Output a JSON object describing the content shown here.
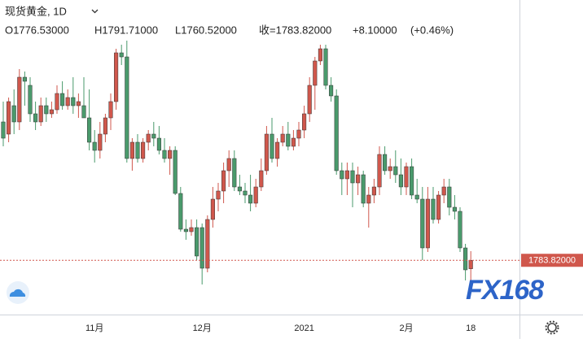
{
  "chart_data": {
    "type": "candlestick",
    "title": "现货黄金, 1D",
    "header": {
      "open": "O1776.53000",
      "high": "H1791.71000",
      "low": "L1760.52000",
      "close": "收=1783.82000",
      "change": "+8.10000",
      "change_pct": "(+0.46%)"
    },
    "watermark": "FX168",
    "up_color": "#d0574c",
    "down_color": "#4a9a6c",
    "ylim": [
      1738.5,
      2008
    ],
    "price_label": {
      "value": 1783.82,
      "label": "1783.82000"
    },
    "categories": [
      null,
      null,
      null,
      null,
      null,
      null,
      null,
      null,
      null,
      null,
      null,
      null,
      null,
      null,
      null,
      null,
      null,
      "11月",
      null,
      null,
      null,
      null,
      null,
      null,
      null,
      null,
      null,
      null,
      null,
      null,
      null,
      null,
      null,
      null,
      null,
      null,
      null,
      "12月",
      null,
      null,
      null,
      null,
      null,
      null,
      null,
      null,
      null,
      null,
      null,
      null,
      null,
      null,
      null,
      null,
      null,
      null,
      "2021",
      null,
      null,
      null,
      null,
      null,
      null,
      null,
      null,
      null,
      null,
      null,
      null,
      null,
      null,
      null,
      null,
      null,
      null,
      "2月",
      null,
      null,
      null,
      null,
      null,
      null,
      null,
      null,
      null,
      null,
      null,
      "18"
    ],
    "open": [
      1903,
      1892.5,
      1917,
      1903,
      1941.5,
      1934.5,
      1910,
      1903,
      1917,
      1910,
      1913.5,
      1927.5,
      1917,
      1924,
      1917,
      1917,
      1906.5,
      1885.5,
      1878.5,
      1892.5,
      1906.5,
      1920.5,
      1962.5,
      1959,
      1871.5,
      1885.5,
      1871.5,
      1885.5,
      1892.5,
      1889,
      1878.5,
      1871.5,
      1878.5,
      1841.4,
      1810.6,
      1808.5,
      1812,
      1812,
      1777,
      1819,
      1836.5,
      1843.5,
      1861,
      1871.5,
      1847,
      1843.5,
      1840,
      1833,
      1847,
      1861,
      1892.5,
      1871.5,
      1885.5,
      1892.5,
      1882,
      1889,
      1896,
      1910,
      1934.5,
      1955.5,
      1966,
      1934.5,
      1925.4,
      1861,
      1854,
      1861,
      1850.5,
      1857.5,
      1833,
      1840,
      1847,
      1875,
      1861,
      1864.5,
      1857.5,
      1847,
      1864.5,
      1840,
      1836.5,
      1794.5,
      1836.5,
      1819,
      1840,
      1847,
      1829.5,
      1826,
      1794.5,
      1776.53
    ],
    "high": [
      1920.5,
      1924,
      1931,
      1948.5,
      1946.4,
      1941.5,
      1920.5,
      1924,
      1924,
      1920.5,
      1934.5,
      1938,
      1931,
      1941.5,
      1927.5,
      1941.5,
      1931,
      1896,
      1903,
      1910,
      1927.5,
      1966,
      1969.5,
      1973,
      1889,
      1892.5,
      1889,
      1896,
      1903,
      1899.5,
      1889,
      1882,
      1882,
      1847,
      1819,
      1819,
      1819,
      1815.5,
      1822.5,
      1847,
      1850.5,
      1868,
      1878.5,
      1878.5,
      1857.5,
      1850.5,
      1857.5,
      1854,
      1871.5,
      1899.5,
      1906.5,
      1889,
      1899.5,
      1903,
      1896,
      1903,
      1917,
      1941.5,
      1959,
      1969.5,
      1969.5,
      1941.5,
      1931,
      1868,
      1868,
      1868,
      1864.5,
      1861,
      1847,
      1854,
      1882,
      1882,
      1871.5,
      1878.5,
      1871.5,
      1868,
      1871.5,
      1854,
      1847,
      1847,
      1847,
      1843.5,
      1854,
      1854,
      1840,
      1829.5,
      1798,
      1791.71
    ],
    "low": [
      1882,
      1885.5,
      1892.5,
      1896,
      1917,
      1903,
      1896,
      1899.5,
      1903,
      1906.5,
      1910,
      1913.5,
      1913.5,
      1910,
      1906.5,
      1906.5,
      1878.5,
      1868,
      1871.5,
      1885.5,
      1896,
      1913.5,
      1952,
      1868,
      1861,
      1868,
      1868,
      1878.5,
      1882,
      1875,
      1868,
      1857.5,
      1840,
      1808.5,
      1801.5,
      1805,
      1784,
      1763,
      1773.5,
      1812,
      1826,
      1833,
      1847,
      1843.5,
      1840,
      1833,
      1826,
      1829.5,
      1843.5,
      1857.5,
      1868,
      1864.5,
      1882,
      1878.5,
      1878.5,
      1882,
      1889,
      1903,
      1913.5,
      1952,
      1931,
      1920.5,
      1857.5,
      1840,
      1840,
      1829.5,
      1840,
      1829.5,
      1812,
      1833,
      1840,
      1857.5,
      1854,
      1850.5,
      1840,
      1840,
      1836.5,
      1833,
      1784,
      1791,
      1815.5,
      1815.5,
      1833,
      1822.5,
      1819,
      1791,
      1766.5,
      1760.52
    ],
    "close": [
      1889,
      1920.5,
      1903,
      1941.5,
      1938,
      1910,
      1903,
      1917,
      1910,
      1913.5,
      1927.5,
      1917,
      1924,
      1917,
      1920.5,
      1906.5,
      1885.5,
      1878.5,
      1892.5,
      1906.5,
      1920.5,
      1962.5,
      1959,
      1871.5,
      1885.5,
      1871.5,
      1885.5,
      1892.5,
      1889,
      1878.5,
      1871.5,
      1878.5,
      1841.4,
      1810.6,
      1808.5,
      1812,
      1787.5,
      1777,
      1819,
      1836.5,
      1843.5,
      1861,
      1871.5,
      1847,
      1843.5,
      1840,
      1833,
      1847,
      1861,
      1892.5,
      1871.5,
      1885.5,
      1892.5,
      1882,
      1889,
      1896,
      1910,
      1934.5,
      1955.5,
      1966,
      1934.5,
      1925.4,
      1861,
      1854,
      1861,
      1850.5,
      1857.5,
      1833,
      1840,
      1847,
      1875,
      1861,
      1864.5,
      1857.5,
      1847,
      1864.5,
      1840,
      1836.5,
      1794.5,
      1836.5,
      1819,
      1840,
      1847,
      1829.5,
      1826,
      1794.5,
      1775.6,
      1783.82
    ]
  }
}
